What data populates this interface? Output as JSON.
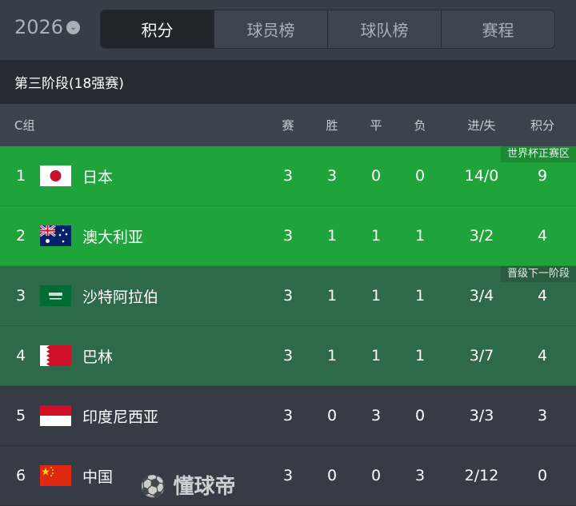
{
  "header": {
    "year": "2026",
    "tabs": [
      "积分",
      "球员榜",
      "球队榜",
      "赛程"
    ],
    "active_tab": 0
  },
  "stage": "第三阶段(18强赛)",
  "columns": {
    "group": "C组",
    "played": "赛",
    "won": "胜",
    "drawn": "平",
    "lost": "负",
    "goals": "进/失",
    "points": "积分"
  },
  "zones": {
    "direct": "世界杯正赛区",
    "next": "晋级下一阶段"
  },
  "rows": [
    {
      "rank": "1",
      "flag": "japan-flag",
      "name": "日本",
      "p": "3",
      "w": "3",
      "d": "0",
      "l": "0",
      "g": "14/0",
      "pts": "9"
    },
    {
      "rank": "2",
      "flag": "australia-flag",
      "name": "澳大利亚",
      "p": "3",
      "w": "1",
      "d": "1",
      "l": "1",
      "g": "3/2",
      "pts": "4"
    },
    {
      "rank": "3",
      "flag": "saudi-arabia-flag",
      "name": "沙特阿拉伯",
      "p": "3",
      "w": "1",
      "d": "1",
      "l": "1",
      "g": "3/4",
      "pts": "4"
    },
    {
      "rank": "4",
      "flag": "bahrain-flag",
      "name": "巴林",
      "p": "3",
      "w": "1",
      "d": "1",
      "l": "1",
      "g": "3/7",
      "pts": "4"
    },
    {
      "rank": "5",
      "flag": "indonesia-flag",
      "name": "印度尼西亚",
      "p": "3",
      "w": "0",
      "d": "3",
      "l": "0",
      "g": "3/3",
      "pts": "3"
    },
    {
      "rank": "6",
      "flag": "china-flag",
      "name": "中国",
      "p": "3",
      "w": "0",
      "d": "0",
      "l": "3",
      "g": "2/12",
      "pts": "0"
    }
  ],
  "watermark": "懂球帝",
  "colors": {
    "direct": "#1fa33b",
    "next": "#2e6a49",
    "bg": "#353c46"
  }
}
